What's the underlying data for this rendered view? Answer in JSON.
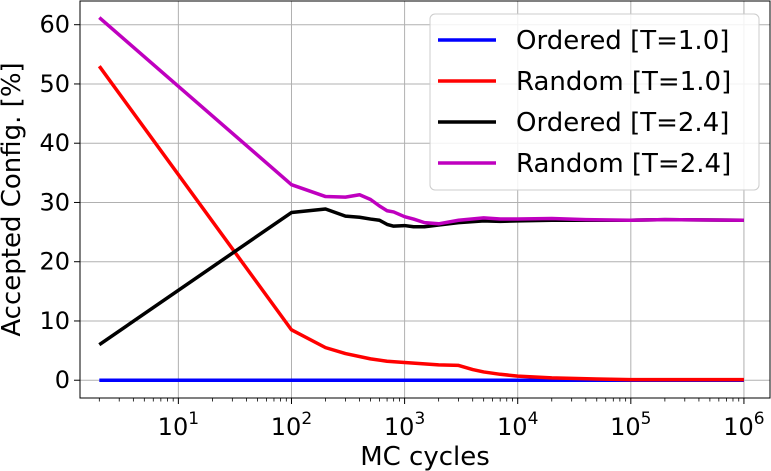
{
  "chart_data": {
    "type": "line",
    "xlabel": "MC cycles",
    "ylabel": "Accepted Config. [%]",
    "xscale": "log",
    "xlim": [
      1.35,
      1700000
    ],
    "ylim": [
      -3,
      64
    ],
    "x_ticks": [
      {
        "value": 10,
        "base": "10",
        "exp": "1"
      },
      {
        "value": 100,
        "base": "10",
        "exp": "2"
      },
      {
        "value": 1000,
        "base": "10",
        "exp": "3"
      },
      {
        "value": 10000,
        "base": "10",
        "exp": "4"
      },
      {
        "value": 100000,
        "base": "10",
        "exp": "5"
      },
      {
        "value": 1000000,
        "base": "10",
        "exp": "6"
      }
    ],
    "y_ticks": [
      0,
      10,
      20,
      30,
      40,
      50,
      60
    ],
    "grid": true,
    "legend_position": "top-right",
    "series": [
      {
        "name": "Ordered [T=1.0]",
        "color": "#0000ff",
        "x": [
          2,
          100,
          1000,
          10000,
          100000,
          1000000
        ],
        "y": [
          0,
          0,
          0,
          0,
          0,
          0
        ]
      },
      {
        "name": "Random [T=1.0]",
        "color": "#ff0000",
        "x": [
          2,
          100,
          200,
          300,
          500,
          700,
          1000,
          2000,
          3000,
          4000,
          5000,
          7000,
          10000,
          20000,
          50000,
          100000,
          1000000
        ],
        "y": [
          53,
          8.5,
          5.5,
          4.5,
          3.6,
          3.2,
          3.0,
          2.6,
          2.5,
          1.8,
          1.4,
          1.0,
          0.7,
          0.4,
          0.2,
          0.1,
          0.1
        ]
      },
      {
        "name": "Ordered [T=2.4]",
        "color": "#000000",
        "x": [
          2,
          100,
          200,
          300,
          400,
          500,
          600,
          700,
          800,
          1000,
          1200,
          1500,
          2000,
          3000,
          5000,
          7000,
          10000,
          20000,
          40000,
          100000,
          200000,
          1000000
        ],
        "y": [
          6,
          28.3,
          28.9,
          27.7,
          27.5,
          27.2,
          27.0,
          26.3,
          26.0,
          26.1,
          25.9,
          25.9,
          26.2,
          26.6,
          26.9,
          26.8,
          26.9,
          27.0,
          27.0,
          27.0,
          27.1,
          27.0
        ]
      },
      {
        "name": "Random [T=2.4]",
        "color": "#bf00bf",
        "x": [
          2,
          100,
          200,
          300,
          400,
          500,
          600,
          700,
          800,
          1000,
          1200,
          1500,
          2000,
          3000,
          5000,
          7000,
          10000,
          20000,
          40000,
          100000,
          200000,
          1000000
        ],
        "y": [
          61.2,
          33,
          31,
          30.9,
          31.3,
          30.5,
          29.4,
          28.6,
          28.4,
          27.6,
          27.2,
          26.6,
          26.4,
          27.0,
          27.4,
          27.2,
          27.2,
          27.3,
          27.1,
          27.0,
          27.1,
          27.0
        ]
      }
    ]
  }
}
